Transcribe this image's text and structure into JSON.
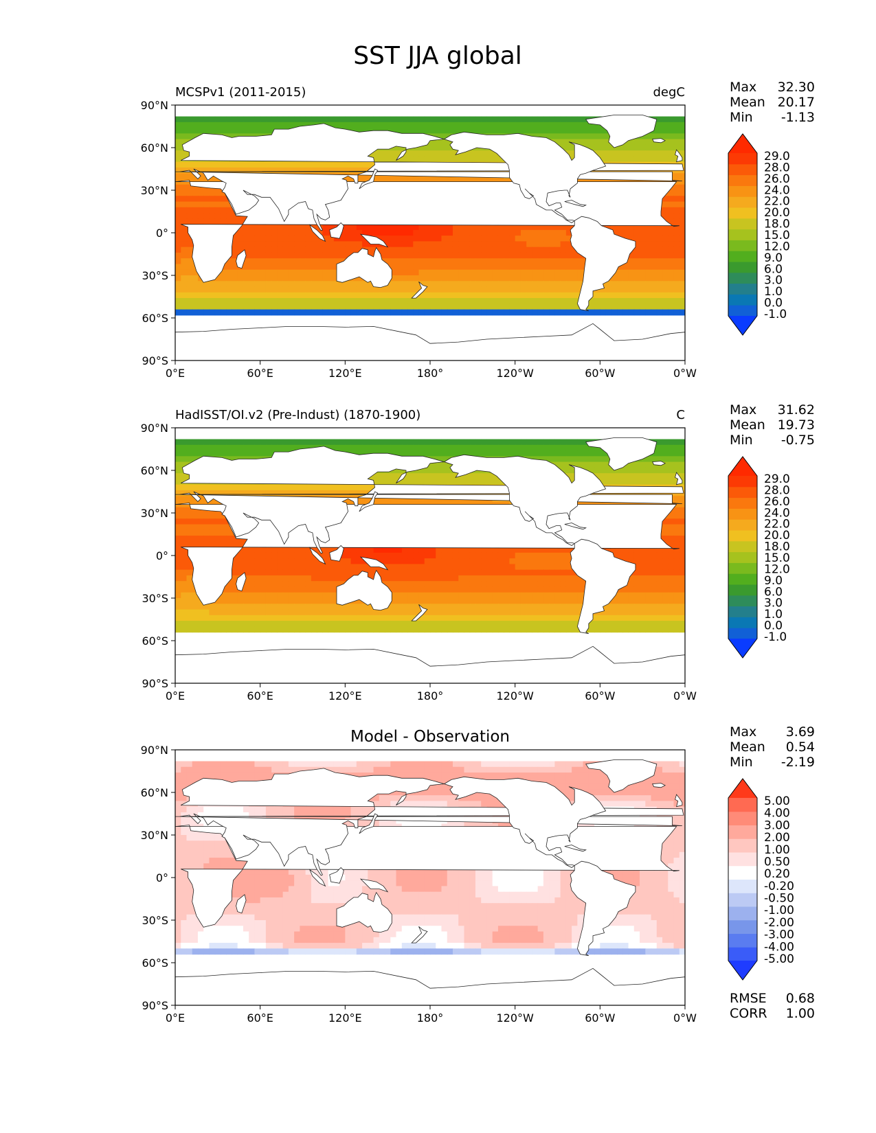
{
  "title": "SST JJA global",
  "lat_ticks": [
    "90°N",
    "60°N",
    "30°N",
    "0°",
    "30°S",
    "60°S",
    "90°S"
  ],
  "lon_ticks": [
    "0°E",
    "60°E",
    "120°E",
    "180°",
    "120°W",
    "60°W",
    "0°W"
  ],
  "stat_labels": {
    "max": "Max",
    "mean": "Mean",
    "min": "Min",
    "rmse": "RMSE",
    "corr": "CORR"
  },
  "abs_palette": [
    "#0a3cff",
    "#1160d6",
    "#0a78b4",
    "#237f8c",
    "#2e8c5a",
    "#3a9a2e",
    "#52ae1e",
    "#7aba1e",
    "#a6c21e",
    "#c8c420",
    "#f0c020",
    "#f5aa1e",
    "#f89314",
    "#fa780e",
    "#fb5a08",
    "#fc3a04",
    "#ff2a00"
  ],
  "diff_palette": [
    "#1f3cff",
    "#3a5cf8",
    "#5a7cf0",
    "#7896ea",
    "#9cb1ee",
    "#bccaf4",
    "#dde6fb",
    "#ffffff",
    "#ffe1e1",
    "#ffc7c0",
    "#ffa99c",
    "#ff8b78",
    "#ff6a52",
    "#ff3a1a"
  ],
  "panels": [
    {
      "left_title": "MCSPv1 (2011-2015)",
      "center_title": "",
      "units": "degC",
      "stats": {
        "max": "32.30",
        "mean": "20.17",
        "min": "-1.13"
      },
      "kind": "abs",
      "colorbar_labels": [
        "29.0",
        "28.0",
        "26.0",
        "24.0",
        "22.0",
        "20.0",
        "18.0",
        "15.0",
        "12.0",
        "9.0",
        "6.0",
        "3.0",
        "1.0",
        "0.0",
        "-1.0"
      ]
    },
    {
      "left_title": "HadISST/OI.v2 (Pre-Indust) (1870-1900)",
      "center_title": "",
      "units": "C",
      "stats": {
        "max": "31.62",
        "mean": "19.73",
        "min": "-0.75"
      },
      "kind": "abs",
      "colorbar_labels": [
        "29.0",
        "28.0",
        "26.0",
        "24.0",
        "22.0",
        "20.0",
        "18.0",
        "15.0",
        "12.0",
        "9.0",
        "6.0",
        "3.0",
        "1.0",
        "0.0",
        "-1.0"
      ]
    },
    {
      "left_title": "",
      "center_title": "Model - Observation",
      "units": "",
      "stats": {
        "max": "3.69",
        "mean": "0.54",
        "min": "-2.19",
        "rmse": "0.68",
        "corr": "1.00"
      },
      "kind": "diff",
      "colorbar_labels": [
        "5.00",
        "4.00",
        "3.00",
        "2.00",
        "1.00",
        "0.50",
        "0.20",
        "-0.20",
        "-0.50",
        "-1.00",
        "-2.00",
        "-3.00",
        "-4.00",
        "-5.00"
      ]
    }
  ]
}
